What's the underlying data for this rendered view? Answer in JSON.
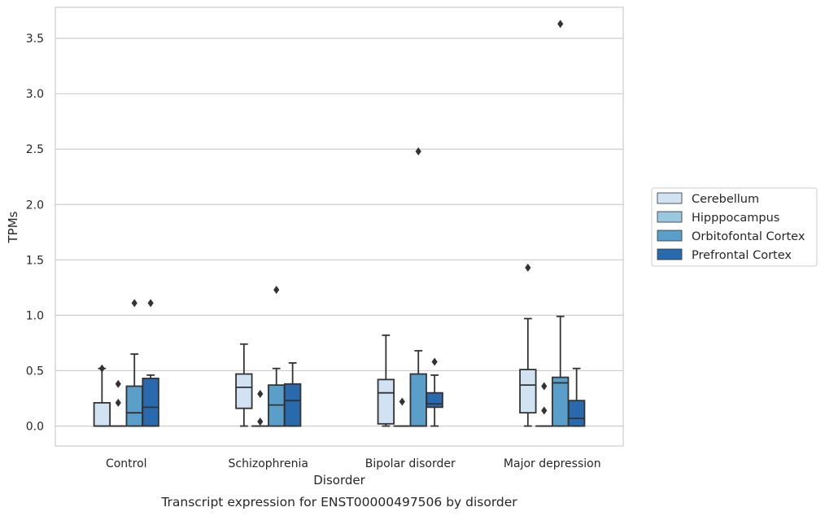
{
  "chart_data": {
    "type": "boxplot",
    "caption": "Transcript expression for ENST00000497506 by disorder",
    "xlabel": "Disorder",
    "ylabel": "TPMs",
    "ylim": [
      -0.18,
      3.78
    ],
    "yticks": [
      0.0,
      0.5,
      1.0,
      1.5,
      2.0,
      2.5,
      3.0,
      3.5
    ],
    "ytick_labels": [
      "0.0",
      "0.5",
      "1.0",
      "1.5",
      "2.0",
      "2.5",
      "3.0",
      "3.5"
    ],
    "grid": "horizontal",
    "legend_position": "right",
    "categories": [
      "Control",
      "Schizophrenia",
      "Bipolar disorder",
      "Major depression"
    ],
    "series": [
      {
        "name": "Cerebellum",
        "color": "#d1e2f2",
        "boxes": [
          {
            "whislo": 0.0,
            "q1": 0.0,
            "med": 0.0,
            "q3": 0.21,
            "whishi": 0.52,
            "fliers": [
              0.52
            ]
          },
          {
            "whislo": 0.0,
            "q1": 0.16,
            "med": 0.35,
            "q3": 0.47,
            "whishi": 0.74,
            "fliers": []
          },
          {
            "whislo": 0.0,
            "q1": 0.02,
            "med": 0.3,
            "q3": 0.42,
            "whishi": 0.82,
            "fliers": []
          },
          {
            "whislo": 0.0,
            "q1": 0.12,
            "med": 0.37,
            "q3": 0.51,
            "whishi": 0.97,
            "fliers": [
              1.43
            ]
          }
        ]
      },
      {
        "name": "Hipppocampus",
        "color": "#9ac8e0",
        "boxes": [
          {
            "whislo": 0.0,
            "q1": 0.0,
            "med": 0.0,
            "q3": 0.0,
            "whishi": 0.0,
            "fliers": [
              0.21,
              0.38
            ]
          },
          {
            "whislo": 0.0,
            "q1": 0.0,
            "med": 0.0,
            "q3": 0.0,
            "whishi": 0.0,
            "fliers": [
              0.04,
              0.29
            ]
          },
          {
            "whislo": 0.0,
            "q1": 0.0,
            "med": 0.0,
            "q3": 0.0,
            "whishi": 0.0,
            "fliers": [
              0.22
            ]
          },
          {
            "whislo": 0.0,
            "q1": 0.0,
            "med": 0.0,
            "q3": 0.0,
            "whishi": 0.0,
            "fliers": [
              0.14,
              0.36
            ]
          }
        ]
      },
      {
        "name": "Orbitofontal Cortex",
        "color": "#5a9fc9",
        "boxes": [
          {
            "whislo": 0.0,
            "q1": 0.0,
            "med": 0.12,
            "q3": 0.36,
            "whishi": 0.65,
            "fliers": [
              1.11
            ]
          },
          {
            "whislo": 0.0,
            "q1": 0.0,
            "med": 0.19,
            "q3": 0.37,
            "whishi": 0.52,
            "fliers": [
              1.23
            ]
          },
          {
            "whislo": 0.0,
            "q1": 0.0,
            "med": 0.0,
            "q3": 0.47,
            "whishi": 0.68,
            "fliers": [
              2.48
            ]
          },
          {
            "whislo": 0.0,
            "q1": 0.0,
            "med": 0.39,
            "q3": 0.44,
            "whishi": 0.99,
            "fliers": [
              3.63
            ]
          }
        ]
      },
      {
        "name": "Prefrontal Cortex",
        "color": "#2969ad",
        "boxes": [
          {
            "whislo": 0.0,
            "q1": 0.0,
            "med": 0.17,
            "q3": 0.43,
            "whishi": 0.46,
            "fliers": [
              1.11
            ]
          },
          {
            "whislo": 0.0,
            "q1": 0.0,
            "med": 0.23,
            "q3": 0.38,
            "whishi": 0.57,
            "fliers": []
          },
          {
            "whislo": 0.0,
            "q1": 0.17,
            "med": 0.2,
            "q3": 0.3,
            "whishi": 0.46,
            "fliers": [
              0.58
            ]
          },
          {
            "whislo": 0.0,
            "q1": 0.0,
            "med": 0.07,
            "q3": 0.23,
            "whishi": 0.52,
            "fliers": []
          }
        ]
      }
    ]
  }
}
